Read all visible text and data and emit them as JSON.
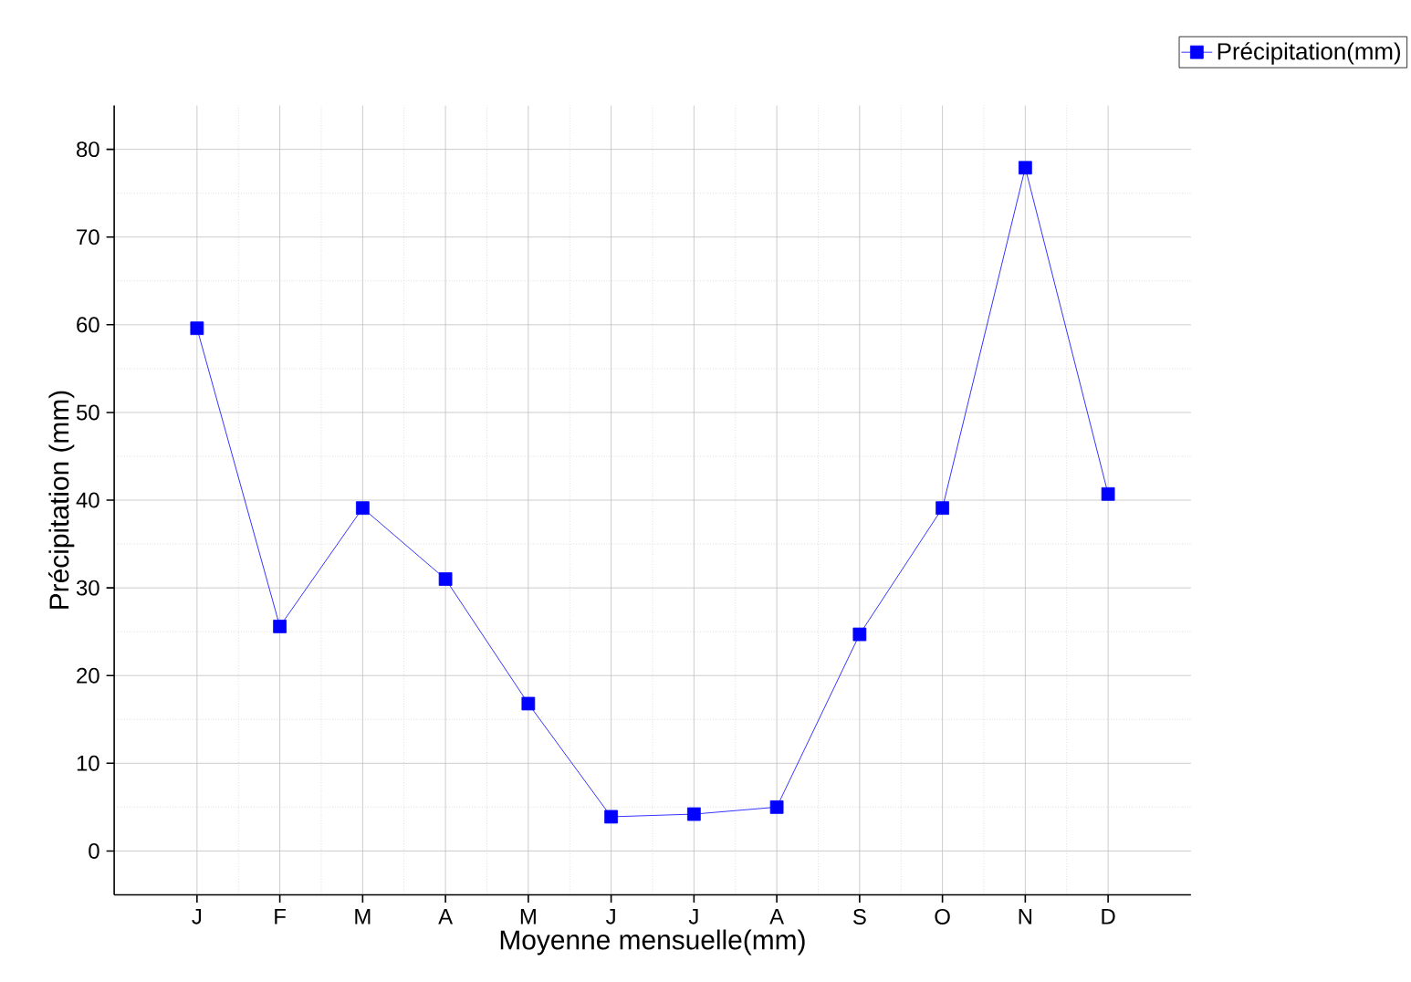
{
  "chart_data": {
    "type": "line",
    "xlabel": "Moyenne mensuelle(mm)",
    "ylabel": "Précipitation (mm)",
    "categories": [
      "J",
      "F",
      "M",
      "A",
      "M",
      "J",
      "J",
      "A",
      "S",
      "O",
      "N",
      "D"
    ],
    "series": [
      {
        "name": "Précipitation(mm)",
        "color": "#0000ff",
        "values": [
          59.6,
          25.6,
          39.1,
          31.0,
          16.8,
          3.9,
          4.2,
          5.0,
          24.7,
          39.1,
          77.9,
          40.7
        ]
      }
    ],
    "ylim": [
      -5,
      85
    ],
    "yticks": [
      0,
      10,
      20,
      30,
      40,
      50,
      60,
      70,
      80
    ],
    "grid": true,
    "legend": "top right",
    "marker": "square",
    "line_style": "solid"
  }
}
